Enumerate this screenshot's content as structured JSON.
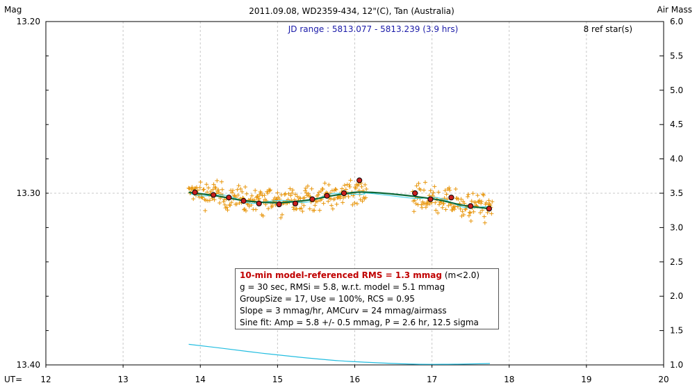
{
  "chart_data": {
    "type": "scatter",
    "title": "2011.09.08, WD2359-434, 12\"(C), Tan (Australia)",
    "ylabel_left": "Mag",
    "ylabel_right": "Air Mass",
    "xlabel": "UT=",
    "jd_range": "JD range : 5813.077 - 5813.239 (3.9 hrs)",
    "ref_stars": "8 ref star(s)",
    "xlim": [
      12,
      20
    ],
    "ylim_mag": [
      13.4,
      13.2
    ],
    "ylim_airmass": [
      1.0,
      6.0
    ],
    "x_ticks": [
      "12",
      "13",
      "14",
      "15",
      "16",
      "17",
      "18",
      "19",
      "20"
    ],
    "y_ticks_left": [
      "13.20",
      "13.30",
      "13.40"
    ],
    "y_ticks_right": [
      "6.0",
      "5.5",
      "5.0",
      "4.5",
      "4.0",
      "3.5",
      "3.0",
      "2.5",
      "2.0",
      "1.5",
      "1.0"
    ],
    "grid": true,
    "series": [
      {
        "kind": "binned_means",
        "x": [
          13.93,
          14.17,
          14.37,
          14.56,
          14.76,
          15.02,
          15.23,
          15.45,
          15.64,
          15.86,
          16.06,
          16.78,
          16.98,
          17.25,
          17.5,
          17.74
        ],
        "y": [
          13.2995,
          13.301,
          13.3025,
          13.3045,
          13.306,
          13.3065,
          13.306,
          13.3035,
          13.3015,
          13.3,
          13.2925,
          13.3,
          13.3035,
          13.3025,
          13.3075,
          13.309
        ]
      },
      {
        "kind": "model_fit",
        "x": [
          13.85,
          14.2,
          14.6,
          15.0,
          15.4,
          15.7,
          16.0,
          16.2,
          16.5,
          16.8,
          17.1,
          17.4,
          17.75
        ],
        "y": [
          13.2995,
          13.3015,
          13.3045,
          13.3055,
          13.304,
          13.3015,
          13.2995,
          13.2995,
          13.3005,
          13.302,
          13.304,
          13.307,
          13.309
        ]
      },
      {
        "kind": "air_mass",
        "x": [
          13.85,
          14.3,
          14.8,
          15.3,
          15.8,
          16.3,
          16.8,
          17.3,
          17.75
        ],
        "y": [
          1.3,
          1.24,
          1.17,
          1.11,
          1.06,
          1.03,
          1.01,
          1.01,
          1.02
        ]
      }
    ],
    "colors": {
      "raw_points": "#e8960c",
      "binned_fill": "#c81e1e",
      "model": "#0e6a3a",
      "aux": "#33d0e8",
      "air_mass": "#22bde0",
      "grid": "#c8c8c8",
      "jd_text": "#1a1aa8"
    }
  },
  "info_box": {
    "line1_red": "10-min model-referenced RMS = 1.3 mmag",
    "line1_tail": " (m<2.0)",
    "line2": "g = 30 sec, RMSi = 5.8, w.r.t. model = 5.1 mmag",
    "line3": "GroupSize = 17, Use = 100%, RCS = 0.95",
    "line4": "Slope = 3 mmag/hr, AMCurv = 24 mmag/airmass",
    "line5": "Sine fit: Amp = 5.8 +/- 0.5 mmag, P = 2.6 hr, 12.5 sigma"
  }
}
